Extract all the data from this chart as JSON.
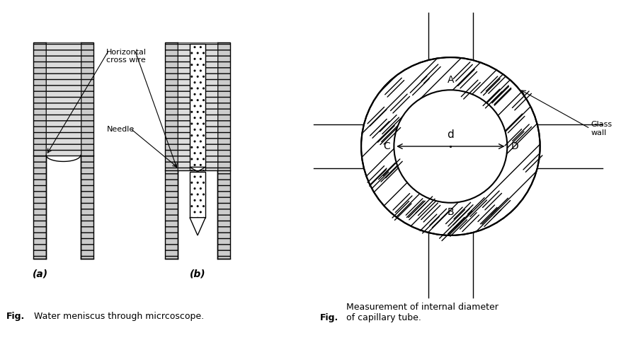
{
  "fig_width": 8.77,
  "fig_height": 4.88,
  "bg_color": "#ffffff",
  "left_panel": {
    "caption_bold": "Fig.",
    "caption_normal": " Water meniscus through micrcoscope.",
    "label_a": "(a)",
    "label_b": "(b)",
    "label_horizontal": "Horizontal\ncross wire",
    "label_needle": "Needle"
  },
  "right_panel": {
    "caption_bold": "Fig.",
    "caption_normal": " Measurement of internal diameter\nof capillary tube.",
    "label_A": "A",
    "label_B": "B",
    "label_C": "C",
    "label_D": "D",
    "label_d": "d",
    "label_glass_wall": "Glass\nwall"
  }
}
